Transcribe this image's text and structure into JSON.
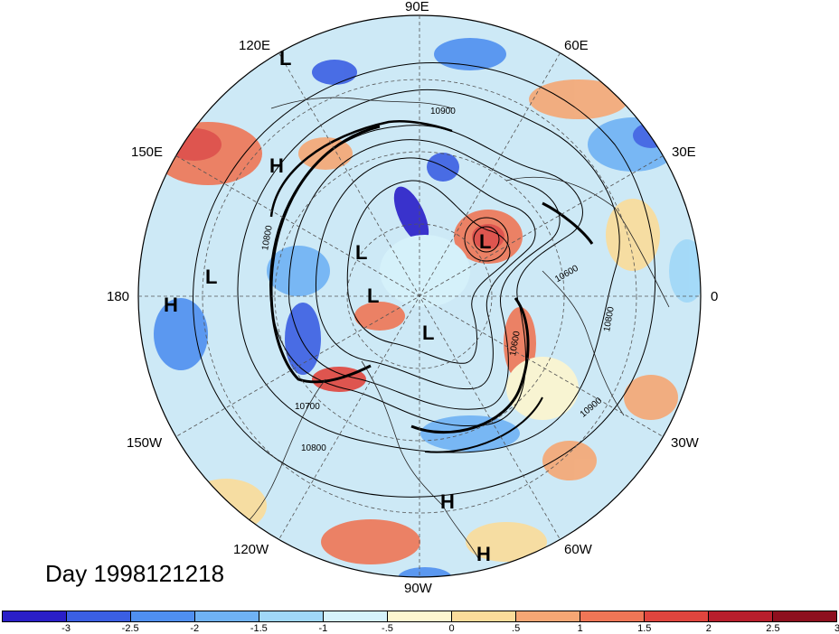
{
  "map": {
    "projection": "north-polar-stereographic",
    "date_label": "Day 1998121218",
    "longitude_labels": {
      "lon_90E": "90E",
      "lon_60E": "60E",
      "lon_120E": "120E",
      "lon_30E": "30E",
      "lon_150E": "150E",
      "lon_0": "0",
      "lon_180": "180",
      "lon_30W": "30W",
      "lon_150W": "150W",
      "lon_60W": "60W",
      "lon_120W": "120W",
      "lon_90W": "90W"
    },
    "pressure_systems": [
      {
        "label": "L"
      },
      {
        "label": "H"
      },
      {
        "label": "L"
      },
      {
        "label": "H"
      },
      {
        "label": "L"
      },
      {
        "label": "L"
      },
      {
        "label": "L"
      },
      {
        "label": "L"
      },
      {
        "label": "H"
      },
      {
        "label": "H"
      }
    ],
    "contour_labels": {
      "c1": "10900",
      "c2": "10800",
      "c3": "10700",
      "c4": "10800",
      "c5": "10600",
      "c6": "10800",
      "c7": "10600",
      "c8": "10900"
    }
  },
  "colorbar": {
    "colors": [
      "#2a1fc8",
      "#3b5fe3",
      "#4f8ff0",
      "#6fb2f4",
      "#a0d8f8",
      "#d6f2fb",
      "#fdf6cf",
      "#fbdc9a",
      "#f6a774",
      "#ef7656",
      "#e0453e",
      "#b81e2c",
      "#8e0f1e"
    ],
    "tick_labels": [
      "-3",
      "-2.5",
      "-2",
      "-1.5",
      "-1",
      "-.5",
      "0",
      ".5",
      "1",
      "1.5",
      "2",
      "2.5",
      "3"
    ]
  }
}
